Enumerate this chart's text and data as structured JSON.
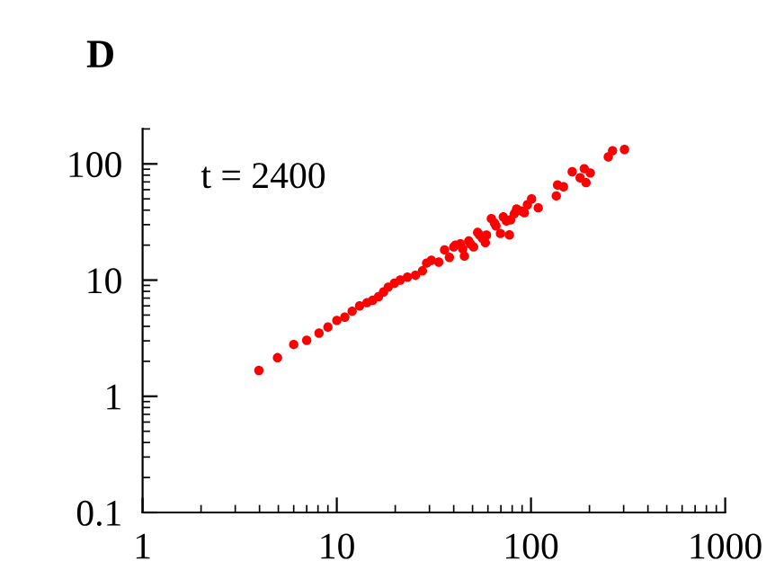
{
  "chart_data": {
    "type": "scatter",
    "title": "D",
    "annotations": [
      "t = 2400"
    ],
    "log": "xy",
    "xlim": [
      1,
      1000
    ],
    "ylim": [
      0.1,
      200
    ],
    "xticks": [
      1,
      10,
      100,
      1000
    ],
    "yticks": [
      0.1,
      1,
      10,
      100
    ],
    "grid": false,
    "legend": false,
    "marker": "circle",
    "series": [
      {
        "color": "#ff0000",
        "x": [
          3.97,
          4.95,
          6.0,
          7.0,
          8.1,
          9.0,
          10,
          11,
          12,
          13.1,
          14.3,
          15.3,
          16.4,
          17.4,
          18.4,
          19.8,
          21.2,
          23.1,
          25.4,
          27.6,
          29,
          30.7,
          33.5,
          35.9,
          38,
          40,
          43.3,
          45.4,
          47.8,
          50.6,
          53.1,
          56.2,
          59,
          62.5,
          66,
          69.6,
          72,
          77.4,
          78.5,
          84.3,
          92.5,
          100.7,
          109,
          135,
          137,
          147,
          163,
          179,
          188,
          192,
          202,
          250,
          263,
          303,
          40.8,
          44.5,
          48.8,
          54.3,
          58.2,
          64.8,
          74.7,
          82,
          89.3,
          95.8
        ],
        "values": [
          1.67,
          2.15,
          2.79,
          3.03,
          3.5,
          3.94,
          4.5,
          4.8,
          5.4,
          6.0,
          6.4,
          6.7,
          7.2,
          7.9,
          8.7,
          9.4,
          10,
          10.6,
          11,
          12,
          14,
          14.8,
          14.3,
          18.2,
          15.7,
          19.3,
          20.5,
          16.1,
          21.7,
          19.3,
          25.7,
          22.9,
          24.4,
          33.8,
          29.3,
          25.2,
          35,
          24.5,
          33,
          40.9,
          38,
          50,
          41.9,
          53,
          65.9,
          63.5,
          85.7,
          76,
          91,
          69,
          83.6,
          115,
          130,
          133,
          20,
          18.6,
          20.5,
          24.5,
          21,
          31,
          32.2,
          37.2,
          39.4,
          44.5
        ]
      }
    ]
  }
}
